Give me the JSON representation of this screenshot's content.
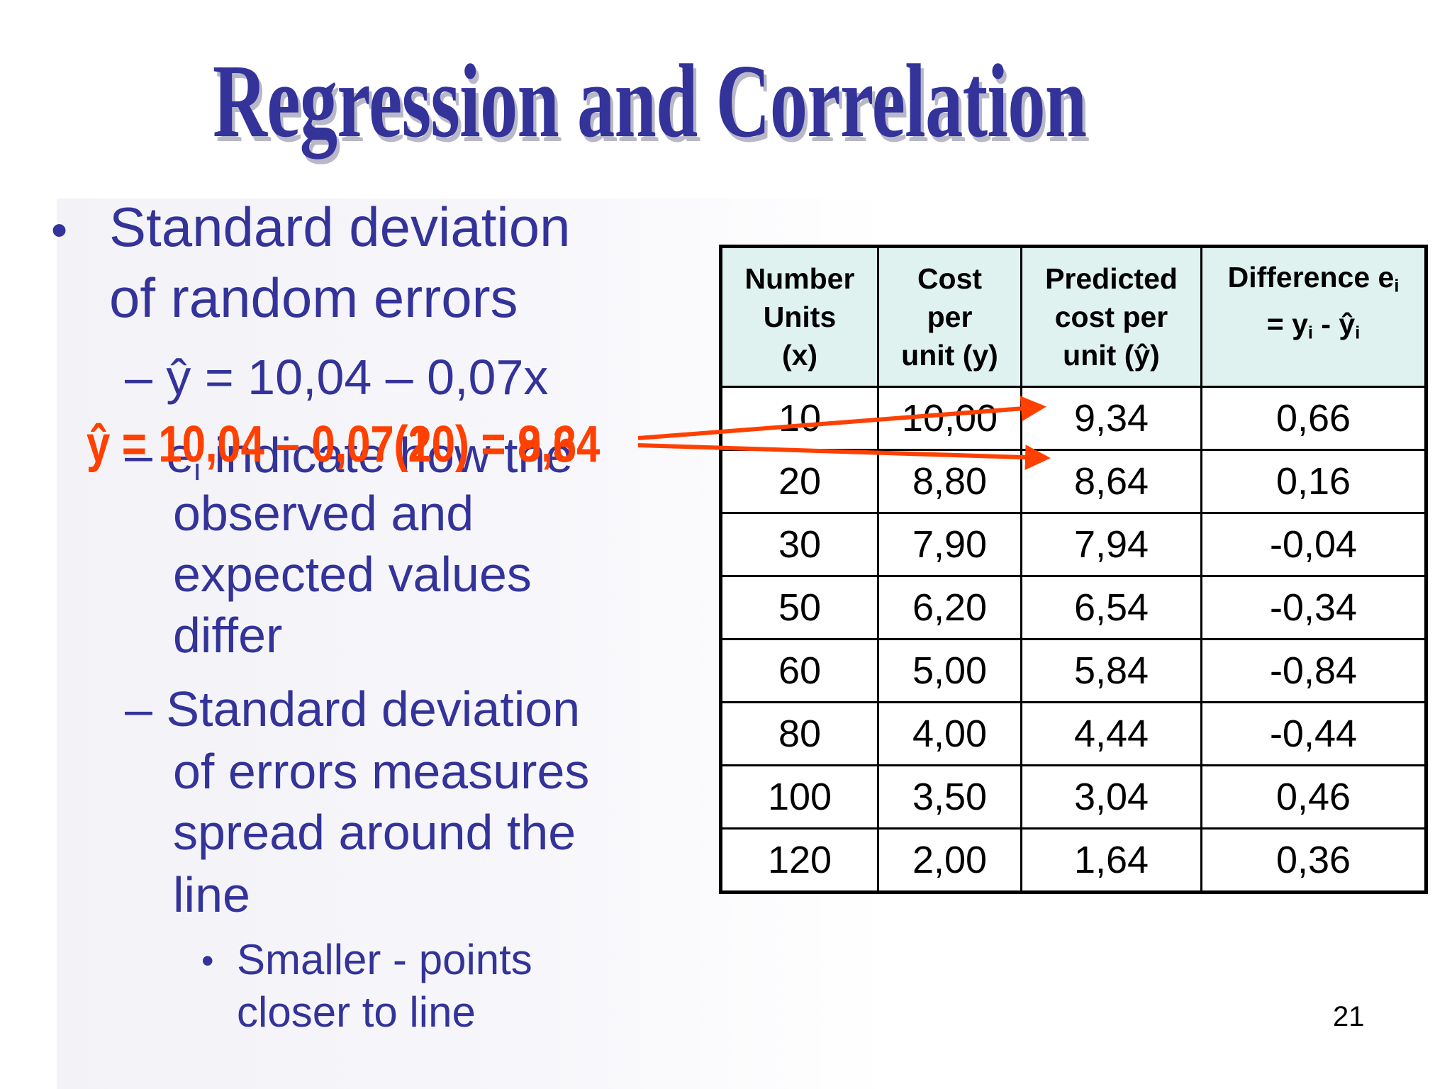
{
  "slide": {
    "title": "Regression and Correlation",
    "page_number": "21"
  },
  "bullets": {
    "b1_line1": "Standard deviation",
    "b1_line2": "of random errors",
    "dash1": "– ŷ = 10,04 – 0,07x",
    "dash2_prefix": "– e",
    "dash2_sub": "i",
    "dash2_line1_rest": " indicate how the",
    "dash2_line2": "observed and",
    "dash2_line3": "expected values",
    "dash2_line4": "differ",
    "dash3_line1": "– Standard deviation",
    "dash3_line2": "of errors measures",
    "dash3_line3": "spread around the",
    "dash3_line4": "line",
    "sub1_line1": "Smaller - points",
    "sub1_line2": "closer to line"
  },
  "overlay": {
    "equation_a": "ŷ = 10,04 – 0,07(10) = 9,34",
    "equation_b": "ŷ = 10,04 – 0,07(20) = 8,64",
    "color": "#ff4000"
  },
  "table": {
    "headers": {
      "col1_line1": "Number",
      "col1_line2": "Units",
      "col1_line3": "(x)",
      "col2_line1": "Cost",
      "col2_line2": "per",
      "col2_line3": "unit (y)",
      "col3_line1": "Predicted",
      "col3_line2": "cost per",
      "col3_line3": "unit (ŷ)",
      "col4_line1_prefix": "Difference e",
      "col4_line1_sub": "i",
      "col4_line2_a": "= y",
      "col4_line2_sub1": "i",
      "col4_line2_b": " - ŷ",
      "col4_line2_sub2": "i"
    },
    "rows": [
      [
        "10",
        "10,00",
        "9,34",
        "0,66"
      ],
      [
        "20",
        "8,80",
        "8,64",
        "0,16"
      ],
      [
        "30",
        "7,90",
        "7,94",
        "-0,04"
      ],
      [
        "50",
        "6,20",
        "6,54",
        "-0,34"
      ],
      [
        "60",
        "5,00",
        "5,84",
        "-0,84"
      ],
      [
        "80",
        "4,00",
        "4,44",
        "-0,44"
      ],
      [
        "100",
        "3,50",
        "3,04",
        "0,46"
      ],
      [
        "120",
        "2,00",
        "1,64",
        "0,36"
      ]
    ]
  },
  "colors": {
    "text_blue": "#33339a",
    "title_shadow": "#b8b8c8",
    "header_bg": "#dff2f0",
    "arrow": "#ff4000"
  }
}
